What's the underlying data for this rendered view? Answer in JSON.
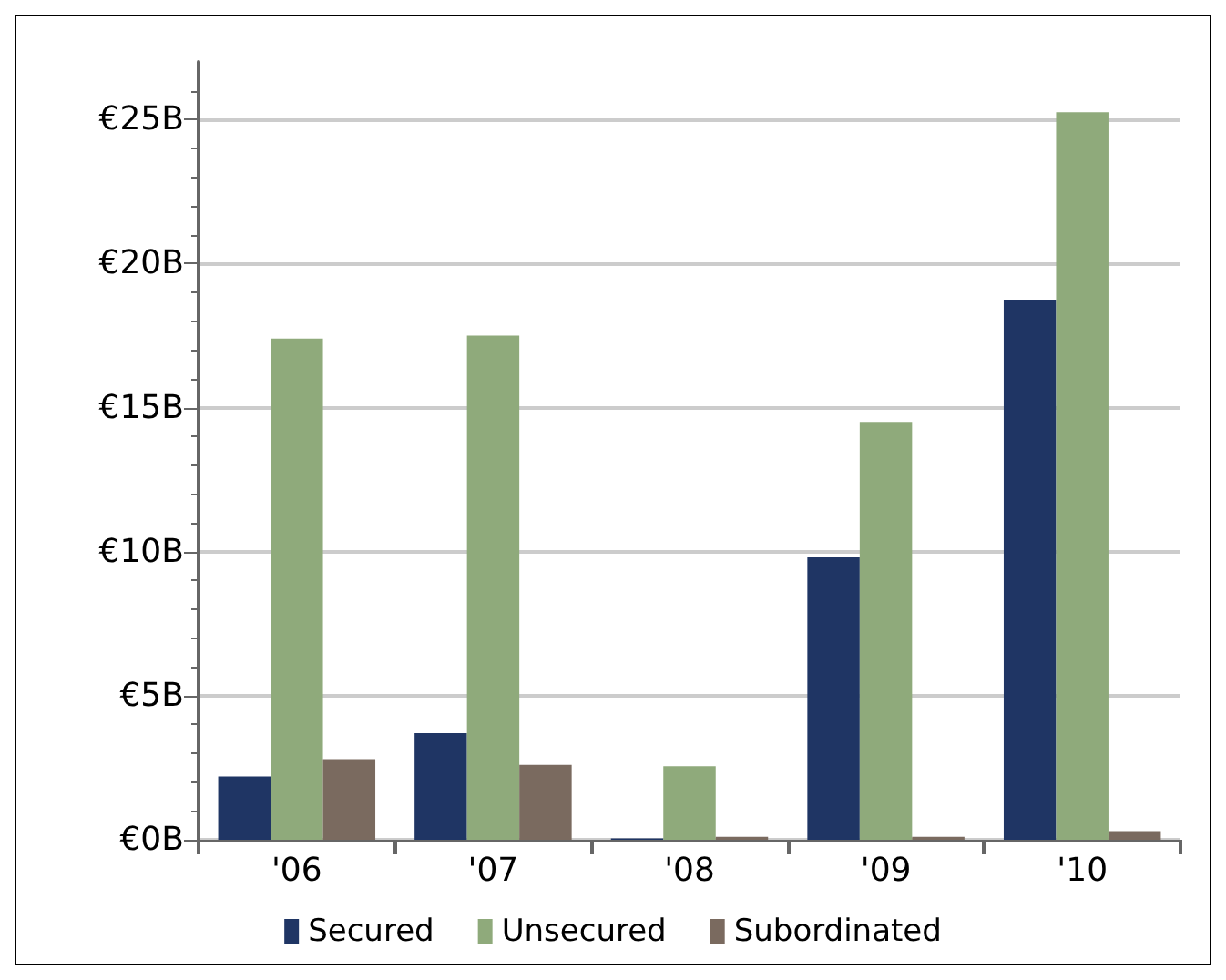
{
  "chart_data": {
    "type": "bar",
    "categories": [
      "'06",
      "'07",
      "'08",
      "'09",
      "'10"
    ],
    "series": [
      {
        "name": "Secured",
        "color": "#1f3564",
        "values": [
          2.2,
          3.7,
          0.05,
          9.8,
          18.75
        ]
      },
      {
        "name": "Unsecured",
        "color": "#8faa7b",
        "values": [
          17.4,
          17.5,
          2.55,
          14.5,
          25.25
        ]
      },
      {
        "name": "Subordinated",
        "color": "#7a6a5f",
        "values": [
          2.8,
          2.6,
          0.1,
          0.1,
          0.3
        ]
      }
    ],
    "ylim": [
      0,
      27
    ],
    "yticks": [
      {
        "value": 0,
        "label": "€0B"
      },
      {
        "value": 5,
        "label": "€5B"
      },
      {
        "value": 10,
        "label": "€10B"
      },
      {
        "value": 15,
        "label": "€15B"
      },
      {
        "value": 20,
        "label": "€20B"
      },
      {
        "value": 25,
        "label": "€25B"
      }
    ],
    "grid": "y",
    "legend": "bottom"
  }
}
